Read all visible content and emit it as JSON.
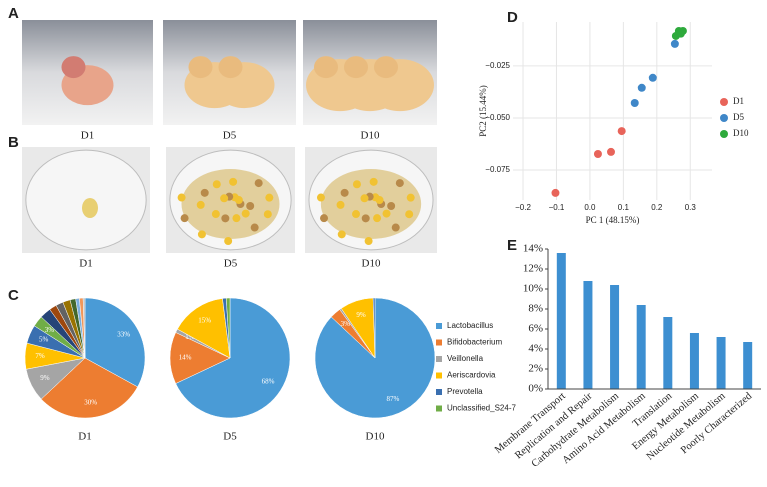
{
  "panel_labels": [
    "A",
    "B",
    "C",
    "D",
    "E"
  ],
  "photo_captions_A": [
    "D1",
    "D5",
    "D10"
  ],
  "photo_captions_B": [
    "D1",
    "D5",
    "D10"
  ],
  "chart_data": [
    {
      "type": "pie",
      "title": "D1",
      "categories": [
        "Lactobacillus",
        "Bifidobacterium",
        "Veillonella",
        "Aeriscardovia",
        "Prevotella",
        "Unclassified_S24-7",
        null,
        null,
        null,
        null,
        null,
        null,
        null,
        null
      ],
      "values": [
        33,
        30,
        9,
        7,
        5,
        3,
        3,
        2,
        2,
        2,
        1.5,
        1,
        1,
        0.5
      ],
      "value_labels": [
        "33%",
        "30%",
        "9%",
        "7%",
        "5%",
        "3%",
        null,
        null,
        null,
        null,
        null,
        null,
        null,
        null
      ],
      "colors": [
        "#4a9bd6",
        "#ed7d31",
        "#a5a5a5",
        "#ffc000",
        "#3a6fb0",
        "#70ad47",
        "#264478",
        "#9e480e",
        "#636363",
        "#997300",
        "#43682b",
        "#7cafdd",
        "#f1975a",
        "#b7b7b7"
      ],
      "legend": true
    },
    {
      "type": "pie",
      "title": "D5",
      "categories": [
        "Lactobacillus",
        "Bifidobacterium",
        "Veillonella",
        "Aeriscardovia",
        "Prevotella",
        "Unclassified_S24-7"
      ],
      "values": [
        68,
        14,
        1,
        15,
        1,
        1
      ],
      "value_labels": [
        "68%",
        "14%",
        "1%",
        "15%",
        null,
        null
      ],
      "colors": [
        "#4a9bd6",
        "#ed7d31",
        "#a5a5a5",
        "#ffc000",
        "#3a6fb0",
        "#70ad47"
      ]
    },
    {
      "type": "pie",
      "title": "D10",
      "categories": [
        "Lactobacillus",
        "Bifidobacterium",
        "Veillonella",
        "Aeriscardovia",
        "Prevotella"
      ],
      "values": [
        87,
        3,
        0.5,
        9,
        0.5
      ],
      "value_labels": [
        "87%",
        "3%",
        null,
        "9%",
        null
      ],
      "colors": [
        "#4a9bd6",
        "#ed7d31",
        "#a5a5a5",
        "#ffc000",
        "#3a6fb0"
      ]
    },
    {
      "type": "scatter",
      "x_label": "PC 1 (48.15%)",
      "y_label": "PC2 (15.44%)",
      "xlim": [
        -0.23,
        0.365
      ],
      "ylim": [
        -0.0894,
        -0.0039
      ],
      "xticks": [
        {
          "value": -0.2,
          "label": "−0.2"
        },
        {
          "value": -0.1,
          "label": "−0.1"
        },
        {
          "value": 0,
          "label": "0.0"
        },
        0.1,
        0.2,
        0.3
      ],
      "yticks": [
        {
          "value": -0.025,
          "label": "−0.025"
        },
        {
          "value": -0.05,
          "label": "−0.050"
        },
        {
          "value": -0.075,
          "label": "−0.075"
        }
      ],
      "grid": true,
      "series": [
        {
          "name": "D1",
          "color": "#e8645a",
          "x": [
            -0.103,
            0.024,
            0.063,
            0.095
          ],
          "values": [
            -0.086,
            -0.0673,
            -0.0663,
            -0.0563
          ]
        },
        {
          "name": "D5",
          "color": "#3f87c8",
          "x": [
            0.134,
            0.155,
            0.188,
            0.254
          ],
          "values": [
            -0.0428,
            -0.0355,
            -0.0307,
            -0.0144
          ]
        },
        {
          "name": "D10",
          "color": "#2eaa3c",
          "x": [
            0.257,
            0.266,
            0.278,
            0.272
          ],
          "values": [
            -0.0106,
            -0.0082,
            -0.0082,
            -0.0095
          ]
        }
      ]
    },
    {
      "type": "bar",
      "categories": [
        "Membrane Transport",
        "Replication and Repair",
        "Carbohydrate Metabolism",
        "Amino Acid Metabolism",
        "Translation",
        "Energy Metabolism",
        "Nucleotide Metabolism",
        "Poorly Characterized"
      ],
      "values": [
        13.6,
        10.8,
        10.4,
        8.4,
        7.2,
        5.6,
        5.2,
        4.7
      ],
      "color": "#3d8fd1",
      "ylim": [
        0,
        14
      ],
      "yticks": [
        {
          "value": 0,
          "label": "0%"
        },
        {
          "value": 2,
          "label": "2%"
        },
        {
          "value": 4,
          "label": "4%"
        },
        {
          "value": 6,
          "label": "6%"
        },
        {
          "value": 8,
          "label": "8%"
        },
        {
          "value": 10,
          "label": "10%"
        },
        {
          "value": 12,
          "label": "12%"
        },
        {
          "value": 14,
          "label": "14%"
        }
      ]
    }
  ]
}
